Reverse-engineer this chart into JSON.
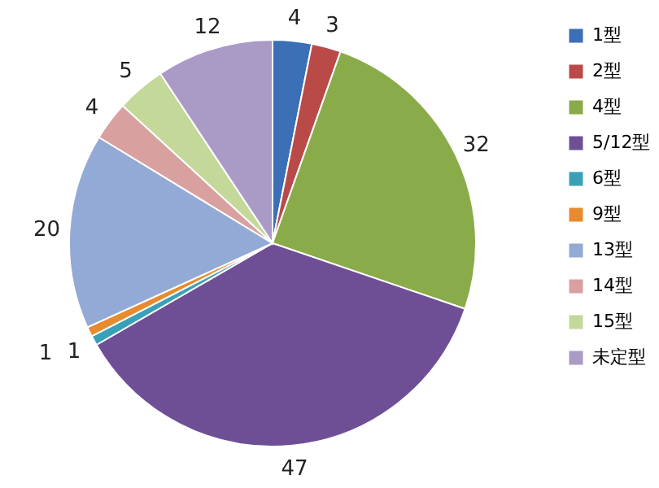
{
  "chart_data": {
    "type": "pie",
    "categories": [
      "1型",
      "2型",
      "4型",
      "5/12型",
      "6型",
      "9型",
      "13型",
      "14型",
      "15型",
      "未定型"
    ],
    "values": [
      4,
      3,
      32,
      47,
      1,
      1,
      20,
      4,
      5,
      12
    ],
    "colors": [
      "#3b6fb6",
      "#b94a48",
      "#8aab4a",
      "#6e4f96",
      "#3aa0b8",
      "#e88a2e",
      "#93aad6",
      "#d9a0a0",
      "#c4d89a",
      "#a99bc6"
    ],
    "data_labels": true,
    "legend": "right"
  }
}
